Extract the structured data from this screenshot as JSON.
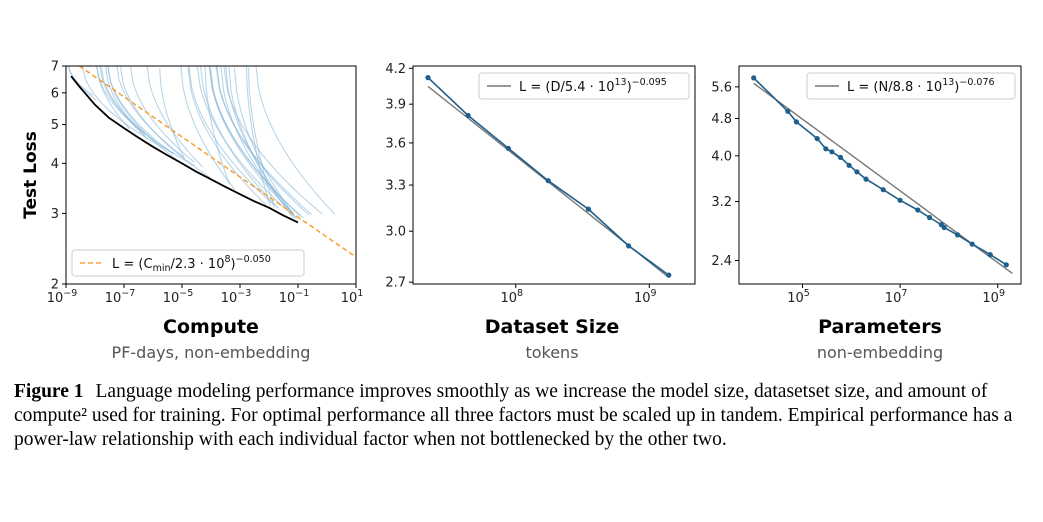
{
  "chart_data": [
    {
      "type": "line",
      "id": "compute",
      "xlabel": "Compute",
      "xsublabel": "PF-days, non-embedding",
      "ylabel": "Test Loss",
      "xscale": "log",
      "yscale": "log",
      "xlim": [
        1e-09,
        10
      ],
      "ylim": [
        2,
        7
      ],
      "xticks": [
        {
          "value": 1e-09,
          "base": "10",
          "exp": "−9"
        },
        {
          "value": 1e-07,
          "base": "10",
          "exp": "−7"
        },
        {
          "value": 1e-05,
          "base": "10",
          "exp": "−5"
        },
        {
          "value": 0.001,
          "base": "10",
          "exp": "−3"
        },
        {
          "value": 0.1,
          "base": "10",
          "exp": "−1"
        },
        {
          "value": 10,
          "base": "10",
          "exp": "1"
        }
      ],
      "yticks": [
        {
          "value": 2,
          "label": "2"
        },
        {
          "value": 3,
          "label": "3"
        },
        {
          "value": 4,
          "label": "4"
        },
        {
          "value": 5,
          "label": "5"
        },
        {
          "value": 6,
          "label": "6"
        },
        {
          "value": 7,
          "label": "7"
        }
      ],
      "frontier": [
        [
          1.5e-09,
          6.6
        ],
        [
          3e-09,
          6.2
        ],
        [
          1e-08,
          5.6
        ],
        [
          3e-08,
          5.2
        ],
        [
          1e-07,
          4.9
        ],
        [
          3e-07,
          4.65
        ],
        [
          1e-06,
          4.4
        ],
        [
          3e-06,
          4.2
        ],
        [
          1e-05,
          4.0
        ],
        [
          3e-05,
          3.82
        ],
        [
          0.0001,
          3.65
        ],
        [
          0.0003,
          3.5
        ],
        [
          0.001,
          3.35
        ],
        [
          0.003,
          3.22
        ],
        [
          0.01,
          3.1
        ],
        [
          0.03,
          2.97
        ],
        [
          0.1,
          2.85
        ]
      ],
      "fit": {
        "coef": 230000000.0,
        "alpha": 0.05,
        "color": "#f5a43a",
        "xrange": [
          1e-09,
          10
        ]
      },
      "fit_label": {
        "lhs": "L = (C",
        "sub": "min",
        "mid": "/2.3 · 10",
        "sup1": "8",
        "rhs": ")",
        "sup2": "−0.050"
      },
      "legend_position": "lower-left",
      "colors": {
        "runs": "#7fb2d6",
        "frontier": "#000000"
      }
    },
    {
      "type": "line",
      "id": "dataset",
      "xlabel": "Dataset Size",
      "xsublabel": "tokens",
      "xscale": "log",
      "yscale": "log",
      "xlim": [
        17000000.0,
        2200000000.0
      ],
      "ylim": [
        2.69,
        4.22
      ],
      "xticks": [
        {
          "value": 100000000.0,
          "base": "10",
          "exp": "8"
        },
        {
          "value": 1000000000.0,
          "base": "10",
          "exp": "9"
        }
      ],
      "yticks": [
        {
          "value": 2.7,
          "label": "2.7"
        },
        {
          "value": 3.0,
          "label": "3.0"
        },
        {
          "value": 3.3,
          "label": "3.3"
        },
        {
          "value": 3.6,
          "label": "3.6"
        },
        {
          "value": 3.9,
          "label": "3.9"
        },
        {
          "value": 4.2,
          "label": "4.2"
        }
      ],
      "points": [
        [
          22000000.0,
          4.12
        ],
        [
          44000000.0,
          3.81
        ],
        [
          88000000.0,
          3.56
        ],
        [
          175000000.0,
          3.33
        ],
        [
          350000000.0,
          3.14
        ],
        [
          700000000.0,
          2.91
        ],
        [
          1400000000.0,
          2.74
        ]
      ],
      "fit": {
        "coef": 54000000000000.0,
        "alpha": 0.095,
        "color": "#777777",
        "xrange": [
          22000000.0,
          1400000000.0
        ]
      },
      "fit_label": {
        "lhs": "L = (D/5.4 · 10",
        "sup1": "13",
        "rhs": ")",
        "sup2": "−0.095"
      },
      "legend_position": "upper-right",
      "colors": {
        "points": "#1f5f8b"
      }
    },
    {
      "type": "line",
      "id": "parameters",
      "xlabel": "Parameters",
      "xsublabel": "non-embedding",
      "xscale": "log",
      "yscale": "log",
      "xlim": [
        5000.0,
        3000000000.0
      ],
      "ylim": [
        2.14,
        6.2
      ],
      "xticks": [
        {
          "value": 100000.0,
          "base": "10",
          "exp": "5"
        },
        {
          "value": 10000000.0,
          "base": "10",
          "exp": "7"
        },
        {
          "value": 1000000000.0,
          "base": "10",
          "exp": "9"
        }
      ],
      "yticks": [
        {
          "value": 2.4,
          "label": "2.4"
        },
        {
          "value": 3.2,
          "label": "3.2"
        },
        {
          "value": 4.0,
          "label": "4.0"
        },
        {
          "value": 4.8,
          "label": "4.8"
        },
        {
          "value": 5.6,
          "label": "5.6"
        }
      ],
      "points": [
        [
          10000.0,
          5.85
        ],
        [
          50000.0,
          4.97
        ],
        [
          75000.0,
          4.72
        ],
        [
          200000.0,
          4.35
        ],
        [
          300000.0,
          4.14
        ],
        [
          400000.0,
          4.08
        ],
        [
          600000.0,
          3.97
        ],
        [
          900000.0,
          3.82
        ],
        [
          1300000.0,
          3.7
        ],
        [
          2000000.0,
          3.57
        ],
        [
          4500000.0,
          3.39
        ],
        [
          10000000.0,
          3.22
        ],
        [
          23000000.0,
          3.07
        ],
        [
          40000000.0,
          2.96
        ],
        [
          70000000.0,
          2.86
        ],
        [
          80000000.0,
          2.82
        ],
        [
          150000000.0,
          2.72
        ],
        [
          300000000.0,
          2.6
        ],
        [
          700000000.0,
          2.47
        ],
        [
          1500000000.0,
          2.35
        ]
      ],
      "fit": {
        "coef": 88000000000000.0,
        "alpha": 0.076,
        "color": "#777777",
        "xrange": [
          10000.0,
          2000000000.0
        ]
      },
      "fit_label": {
        "lhs": "L = (N/8.8 · 10",
        "sup1": "13",
        "rhs": ")",
        "sup2": "−0.076"
      },
      "legend_position": "upper-right",
      "colors": {
        "points": "#1f5f8b"
      }
    }
  ],
  "caption": {
    "label": "Figure 1",
    "text": "Language modeling performance improves smoothly as we increase the model size, datasetset size, and amount of compute² used for training. For optimal performance all three factors must be scaled up in tandem. Empirical performance has a power-law relationship with each individual factor when not bottlenecked by the other two."
  }
}
